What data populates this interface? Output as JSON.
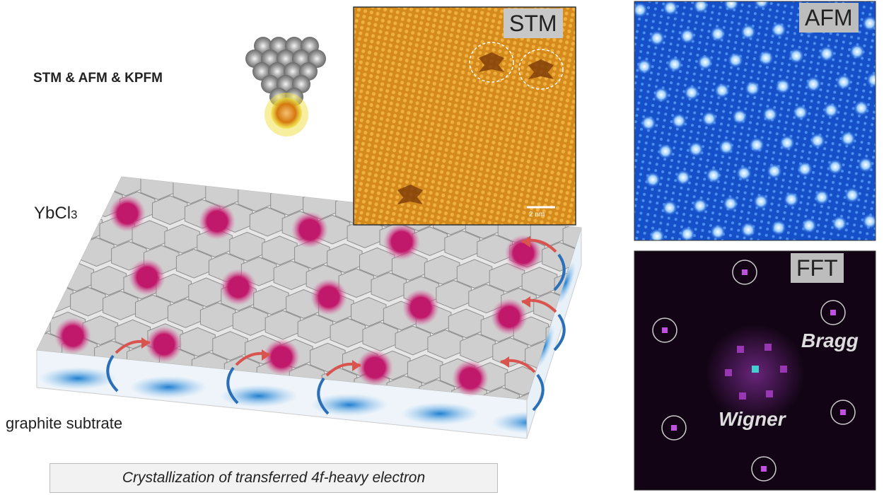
{
  "labels": {
    "techniques": "STM & AFM & KPFM",
    "material_base": "YbCl",
    "material_sub": "3",
    "substrate": "graphite subtrate",
    "caption": "Crystallization of transferred 4f-heavy electron"
  },
  "panels": {
    "stm": {
      "label": "STM",
      "scale_bar": "2 nm"
    },
    "afm": {
      "label": "AFM"
    },
    "fft": {
      "label": "FFT",
      "peak_labels": [
        "Bragg",
        "Wigner"
      ]
    }
  },
  "colors": {
    "electron": "#c0186a",
    "hex_tile": "#cfcfcf",
    "substrate_blue": "#1e7fd0",
    "arrow_red": "#d9534f",
    "arrow_blue": "#2a6fb8",
    "stm_orange": "#d98a1a",
    "afm_blue": "#1a5fd8",
    "fft_purple": "#b040d0"
  }
}
